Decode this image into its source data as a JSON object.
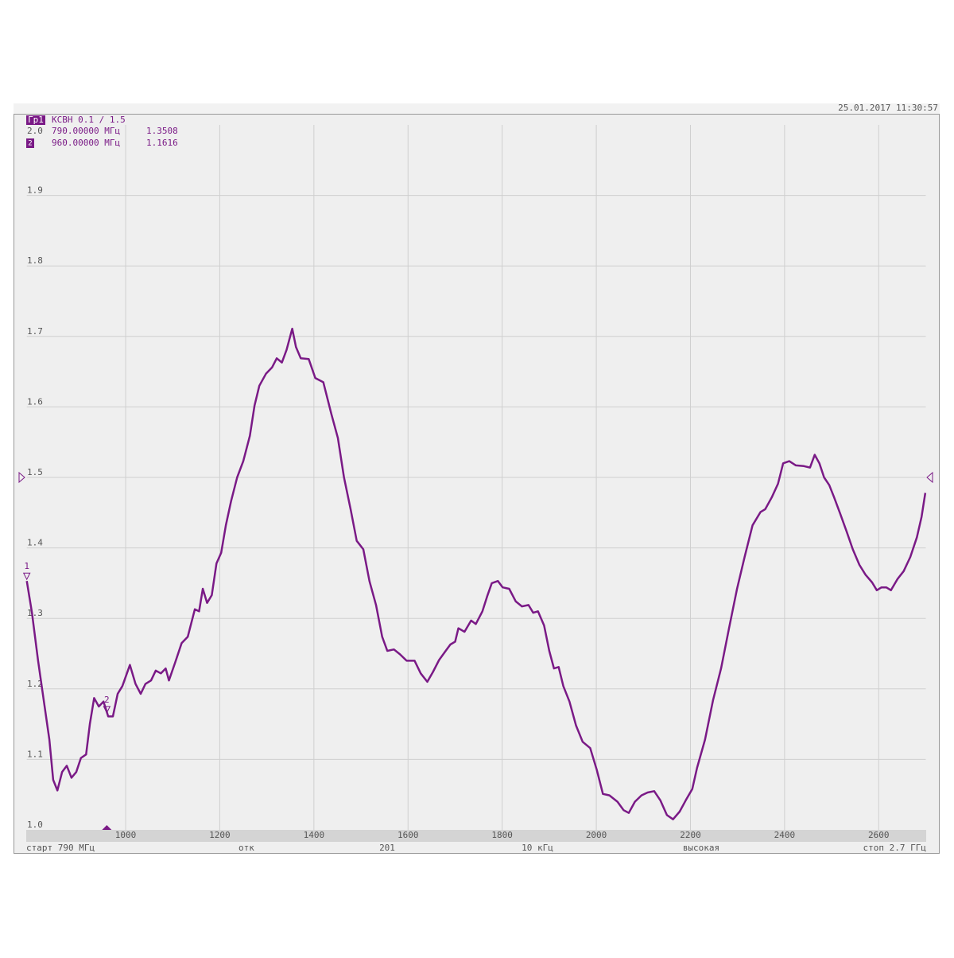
{
  "chart_data": {
    "type": "line",
    "timestamp": "25.01.2017 11:30:57",
    "trace_label": "Гр1",
    "format_label": "КСВН 0.1 / 1.5",
    "reference_level": 1.5,
    "markers": [
      {
        "label": "1",
        "x": 790,
        "value": 1.3508,
        "freq_text": "790.00000 МГц",
        "value_text": "1.3508"
      },
      {
        "label": "2",
        "x": 960,
        "value": 1.1616,
        "freq_text": "960.00000 МГц",
        "value_text": "1.1616"
      }
    ],
    "status": [
      "старт 790 МГц",
      "отк",
      "201",
      "10 кГц",
      "высокая",
      "стоп 2.7 ГГц"
    ],
    "xlim": [
      790,
      2700
    ],
    "xticks": [
      1000,
      1200,
      1400,
      1600,
      1800,
      2000,
      2200,
      2400,
      2600
    ],
    "ylim": [
      1,
      2
    ],
    "yticks": [
      {
        "value": 1,
        "label": "1.0"
      },
      1.1,
      1.2,
      1.3,
      1.4,
      1.5,
      1.6,
      1.7,
      1.8,
      1.9,
      {
        "value": 2,
        "label": "2.0"
      }
    ],
    "grid": true,
    "x": [
      790,
      801,
      814,
      826,
      838,
      846,
      855,
      865,
      875,
      885,
      895,
      905,
      916,
      924,
      933,
      943,
      953,
      963,
      973,
      983,
      993,
      1009,
      1021,
      1032,
      1042,
      1054,
      1064,
      1075,
      1085,
      1092,
      1105,
      1119,
      1132,
      1147,
      1156,
      1164,
      1173,
      1183,
      1193,
      1203,
      1213,
      1224,
      1237,
      1250,
      1264,
      1274,
      1284,
      1298,
      1311,
      1321,
      1332,
      1342,
      1354,
      1362,
      1372,
      1389,
      1403,
      1420,
      1437,
      1451,
      1464,
      1478,
      1491,
      1505,
      1518,
      1532,
      1545,
      1556,
      1570,
      1583,
      1597,
      1614,
      1627,
      1641,
      1653,
      1666,
      1680,
      1690,
      1700,
      1707,
      1720,
      1734,
      1744,
      1758,
      1768,
      1778,
      1791,
      1801,
      1815,
      1829,
      1842,
      1856,
      1866,
      1876,
      1889,
      1900,
      1910,
      1920,
      1930,
      1943,
      1957,
      1971,
      1987,
      2001,
      2014,
      2028,
      2045,
      2058,
      2069,
      2082,
      2096,
      2109,
      2123,
      2136,
      2150,
      2163,
      2177,
      2190,
      2204,
      2214,
      2231,
      2248,
      2265,
      2282,
      2299,
      2315,
      2332,
      2349,
      2359,
      2373,
      2386,
      2397,
      2410,
      2424,
      2441,
      2454,
      2464,
      2474,
      2484,
      2495,
      2505,
      2518,
      2532,
      2545,
      2559,
      2572,
      2586,
      2596,
      2606,
      2616,
      2626,
      2640,
      2653,
      2667,
      2681,
      2691,
      2699
    ],
    "series": [
      {
        "color": "#7a1a86",
        "values": [
          1.353,
          1.308,
          1.24,
          1.184,
          1.128,
          1.071,
          1.056,
          1.082,
          1.091,
          1.074,
          1.082,
          1.102,
          1.107,
          1.15,
          1.187,
          1.175,
          1.182,
          1.161,
          1.161,
          1.193,
          1.204,
          1.234,
          1.207,
          1.193,
          1.207,
          1.212,
          1.226,
          1.222,
          1.229,
          1.212,
          1.237,
          1.265,
          1.274,
          1.313,
          1.31,
          1.342,
          1.322,
          1.333,
          1.378,
          1.393,
          1.432,
          1.466,
          1.5,
          1.523,
          1.559,
          1.602,
          1.63,
          1.647,
          1.656,
          1.669,
          1.663,
          1.681,
          1.711,
          1.685,
          1.669,
          1.668,
          1.641,
          1.635,
          1.59,
          1.556,
          1.5,
          1.455,
          1.41,
          1.398,
          1.353,
          1.319,
          1.274,
          1.254,
          1.256,
          1.249,
          1.24,
          1.24,
          1.222,
          1.21,
          1.224,
          1.241,
          1.254,
          1.263,
          1.267,
          1.286,
          1.281,
          1.297,
          1.292,
          1.31,
          1.331,
          1.35,
          1.353,
          1.344,
          1.342,
          1.324,
          1.317,
          1.319,
          1.308,
          1.31,
          1.29,
          1.254,
          1.229,
          1.231,
          1.204,
          1.182,
          1.148,
          1.125,
          1.116,
          1.085,
          1.051,
          1.049,
          1.04,
          1.028,
          1.024,
          1.04,
          1.049,
          1.053,
          1.055,
          1.042,
          1.021,
          1.015,
          1.026,
          1.042,
          1.058,
          1.088,
          1.128,
          1.184,
          1.229,
          1.286,
          1.342,
          1.387,
          1.432,
          1.451,
          1.455,
          1.472,
          1.491,
          1.52,
          1.523,
          1.517,
          1.516,
          1.514,
          1.532,
          1.52,
          1.5,
          1.489,
          1.472,
          1.449,
          1.423,
          1.398,
          1.376,
          1.362,
          1.351,
          1.34,
          1.344,
          1.344,
          1.34,
          1.356,
          1.367,
          1.387,
          1.415,
          1.444,
          1.478
        ]
      }
    ]
  }
}
